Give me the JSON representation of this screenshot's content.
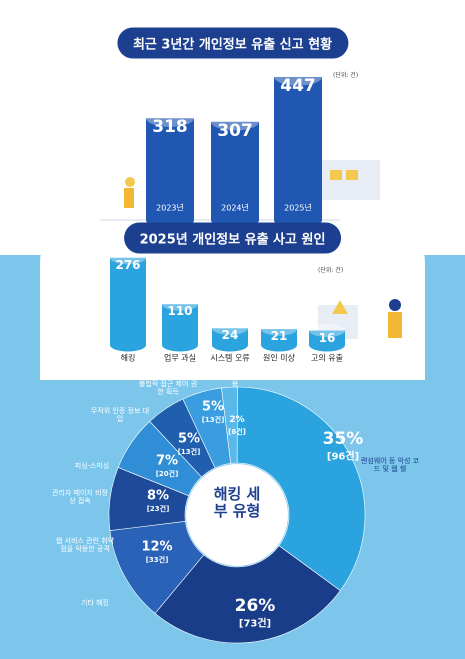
{
  "chart_data": [
    {
      "type": "cylinder",
      "title": "최근 3년간 개인정보 유출 신고 현황",
      "unit": "(단위: 건)",
      "categories": [
        "2023년",
        "2024년",
        "2025년"
      ],
      "values": [
        318,
        307,
        447
      ],
      "color": "#1f57b3"
    },
    {
      "type": "cylinder",
      "title": "2025년 개인정보 유출 사고 원인",
      "unit": "(단위: 건)",
      "categories": [
        "해킹",
        "업무 과실",
        "시스템 오류",
        "원인 미상",
        "고의 유출"
      ],
      "values": [
        276,
        110,
        24,
        21,
        16
      ],
      "color": "#2ba3df"
    },
    {
      "type": "donut",
      "title": "해킹 세부 유형",
      "categories": [
        "서비스 내 취약점 악용",
        "랜섬웨어 등 악성 코드 및 웹 쉘",
        "기타 해킹",
        "웹 서비스 관련 취약점을 악용한 공격",
        "관리자 페이지 비정상 접속",
        "피싱·스미싱",
        "무작위 인증 정보 대입",
        "불법적 접근 제어 권한 획득"
      ],
      "values": [
        2,
        35,
        26,
        12,
        8,
        7,
        5,
        5
      ],
      "value_labels": [
        "2%",
        "35%",
        "26%",
        "12%",
        "8%",
        "7%",
        "5%",
        "5%"
      ],
      "count_labels": [
        "[6건]",
        "[96건]",
        "[73건]",
        "[33건]",
        "[23건]",
        "[20건]",
        "[13건]",
        "[13건]"
      ],
      "colors": [
        "#5ab8ea",
        "#2ba3df",
        "#1a3d8a",
        "#2a62b8",
        "#1e4a9a",
        "#2f8ed6",
        "#1f5fae",
        "#3a9de0"
      ]
    }
  ]
}
